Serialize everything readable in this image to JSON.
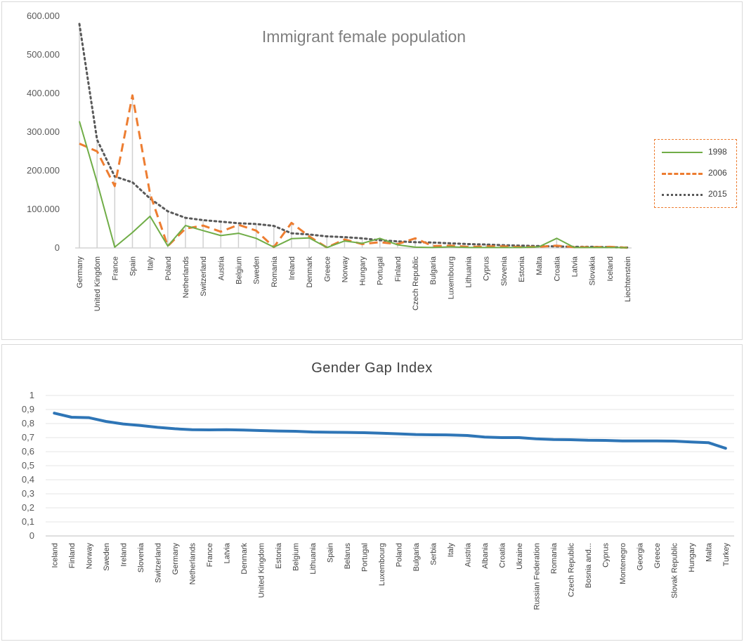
{
  "chart_data": [
    {
      "type": "line",
      "title": "Immigrant female population",
      "ylim": [
        0,
        600000
      ],
      "yticks": [
        "0",
        "100.000",
        "200.000",
        "300.000",
        "400.000",
        "500.000",
        "600.000"
      ],
      "grid": false,
      "legend_position": "right",
      "categories": [
        "Germany",
        "United Kingdom",
        "France",
        "Spain",
        "Italy",
        "Poland",
        "Netherlands",
        "Switzerland",
        "Austria",
        "Belgium",
        "Sweden",
        "Romania",
        "Ireland",
        "Denmark",
        "Greece",
        "Norway",
        "Hungary",
        "Portugal",
        "Finland",
        "Czech Republic",
        "Bulgaria",
        "Luxembourg",
        "Lithuania",
        "Cyprus",
        "Slovenia",
        "Estonia",
        "Malta",
        "Croatia",
        "Latvia",
        "Slovakia",
        "Iceland",
        "Liechtenstein"
      ],
      "series": [
        {
          "name": "1998",
          "color": "#70ad47",
          "style": "solid",
          "values": [
            328000,
            170000,
            2000,
            40000,
            82000,
            5000,
            58000,
            45000,
            32000,
            38000,
            25000,
            2000,
            24000,
            26000,
            1000,
            18000,
            12000,
            25000,
            8000,
            2000,
            1000,
            3000,
            1000,
            1000,
            1000,
            1000,
            3000,
            25000,
            1000,
            1000,
            1000,
            500
          ]
        },
        {
          "name": "2006",
          "color": "#ed7d31",
          "style": "dashed",
          "values": [
            270000,
            250000,
            160000,
            395000,
            140000,
            5000,
            50000,
            58000,
            42000,
            60000,
            45000,
            2000,
            65000,
            30000,
            1000,
            22000,
            10000,
            15000,
            10000,
            25000,
            5000,
            6000,
            3000,
            4000,
            4000,
            2000,
            3000,
            6000,
            2000,
            2000,
            3000,
            500
          ]
        },
        {
          "name": "2015",
          "color": "#595959",
          "style": "dotted",
          "values": [
            580000,
            280000,
            185000,
            170000,
            128000,
            95000,
            78000,
            72000,
            68000,
            64000,
            62000,
            57000,
            38000,
            35000,
            30000,
            28000,
            25000,
            20000,
            17000,
            15000,
            14000,
            12000,
            10000,
            9000,
            7000,
            6000,
            5000,
            4000,
            3000,
            3000,
            2000,
            1000
          ]
        }
      ]
    },
    {
      "type": "line",
      "title": "Gender Gap Index",
      "ylim": [
        0,
        1
      ],
      "yticks": [
        "0",
        "0,1",
        "0,2",
        "0,3",
        "0,4",
        "0,5",
        "0,6",
        "0,7",
        "0,8",
        "0,9",
        "1"
      ],
      "grid": true,
      "categories": [
        "Iceland",
        "Finland",
        "Norway",
        "Sweden",
        "Ireland",
        "Slovenia",
        "Switzerland",
        "Germany",
        "Netherlands",
        "France",
        "Latvia",
        "Denmark",
        "United Kingdom",
        "Estonia",
        "Belgium",
        "Lithuania",
        "Spain",
        "Belarus",
        "Portugal",
        "Luxembourg",
        "Poland",
        "Bulgaria",
        "Serbia",
        "Italy",
        "Austria",
        "Albania",
        "Croatia",
        "Ukraine",
        "Russian Federation",
        "Romania",
        "Czech Republic",
        "Bosnia and...",
        "Cyprus",
        "Montenegro",
        "Georgia",
        "Greece",
        "Slovak Republic",
        "Hungary",
        "Malta",
        "Turkey"
      ],
      "series": [
        {
          "color": "#2e75b6",
          "values": [
            0.874,
            0.845,
            0.842,
            0.815,
            0.797,
            0.786,
            0.773,
            0.763,
            0.756,
            0.755,
            0.756,
            0.754,
            0.75,
            0.747,
            0.745,
            0.74,
            0.738,
            0.737,
            0.735,
            0.731,
            0.727,
            0.722,
            0.72,
            0.719,
            0.715,
            0.704,
            0.7,
            0.7,
            0.691,
            0.686,
            0.685,
            0.681,
            0.68,
            0.676,
            0.676,
            0.676,
            0.675,
            0.669,
            0.664,
            0.624
          ]
        }
      ]
    }
  ]
}
